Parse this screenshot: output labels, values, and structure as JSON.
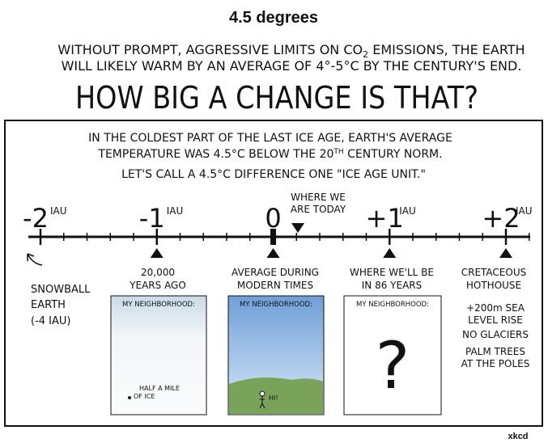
{
  "header": {
    "title": "4.5 degrees",
    "intro": [
      [
        "WITHOUT PROMPT, AGGRESSIVE LIMITS ON CO",
        "2",
        " EMISSIONS, THE EARTH"
      ],
      [
        "WILL LIKELY WARM BY AN AVERAGE OF 4°-5°C BY THE CENTURY'S END."
      ]
    ],
    "question": "HOW BIG A CHANGE IS THAT?"
  },
  "panel": {
    "intro": [
      [
        "IN THE COLDEST PART OF THE LAST ICE AGE, EARTH'S AVERAGE"
      ],
      [
        "TEMPERATURE WAS 4.5°C BELOW THE 20",
        "TH",
        " CENTURY NORM."
      ],
      [
        "LET'S CALL A 4.5°C DIFFERENCE ONE \"ICE AGE UNIT.\""
      ]
    ]
  },
  "scale": {
    "marks": [
      {
        "label": "-2",
        "unit": "IAU"
      },
      {
        "label": "-1",
        "unit": "IAU"
      },
      {
        "label": "0"
      },
      {
        "label": "+1",
        "unit": "IAU"
      },
      {
        "label": "+2",
        "unit": "IAU"
      }
    ],
    "today": [
      "WHERE WE",
      "ARE TODAY"
    ]
  },
  "captions": {
    "snowball": [
      "SNOWBALL",
      "EARTH",
      "(-4 IAU)"
    ],
    "ice_age": [
      "20,000",
      "YEARS AGO"
    ],
    "modern": [
      "AVERAGE DURING",
      "MODERN TIMES"
    ],
    "future": [
      "WHERE WE'LL BE",
      "IN 86 YEARS"
    ],
    "cretaceous": [
      "CRETACEOUS",
      "HOTHOUSE"
    ],
    "cretaceous_notes": [
      "+200m SEA",
      "LEVEL RISE",
      "NO GLACIERS",
      "PALM TREES",
      "AT THE POLES"
    ]
  },
  "neighborhoods": {
    "label": "MY NEIGHBORHOOD:",
    "ice_note": [
      "HALF A MILE",
      "OF ICE"
    ],
    "greeting": "HI!",
    "unknown": "?"
  },
  "footer": "xkcd"
}
